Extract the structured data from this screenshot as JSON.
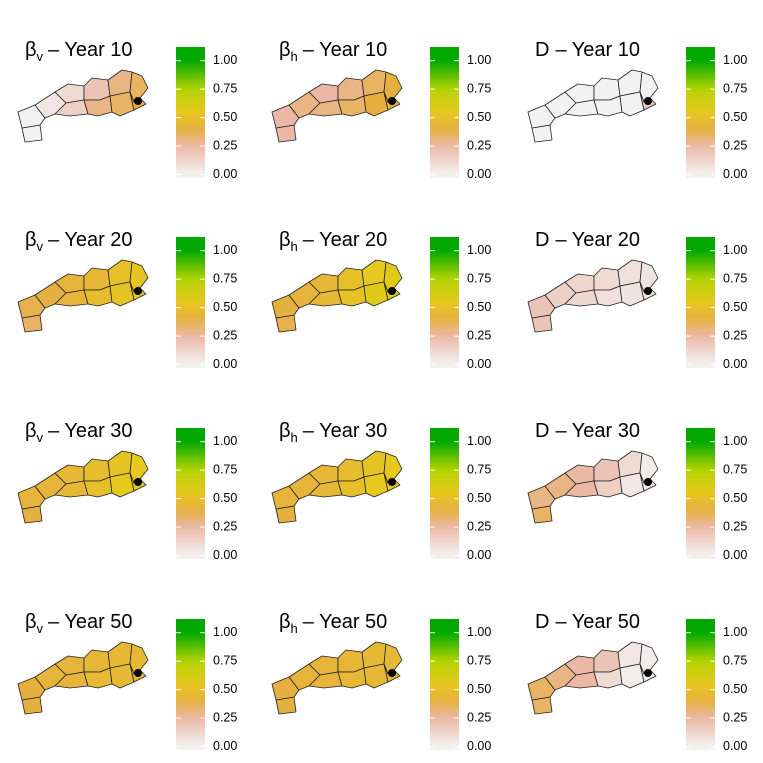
{
  "panels": [
    {
      "title": {
        "symbol": "β",
        "subscript": "v",
        "text": "– Year  10"
      },
      "values": [
        0.0,
        0.0,
        0.05,
        0.1,
        0.15,
        0.2,
        0.3,
        0.3,
        0.35,
        0.35,
        0.4
      ]
    },
    {
      "title": {
        "symbol": "β",
        "subscript": "h",
        "text": "– Year  10"
      },
      "values": [
        0.25,
        0.25,
        0.3,
        0.25,
        0.3,
        0.3,
        0.35,
        0.35,
        0.4,
        0.4,
        0.4
      ]
    },
    {
      "title": {
        "symbol": "D",
        "text": "– Year  10"
      },
      "values": [
        0.0,
        0.0,
        0.0,
        0.0,
        0.0,
        0.0,
        0.0,
        0.0,
        0.0,
        0.0,
        0.2
      ]
    },
    {
      "title": {
        "symbol": "β",
        "subscript": "v",
        "text": "– Year  20"
      },
      "values": [
        0.35,
        0.38,
        0.4,
        0.42,
        0.42,
        0.45,
        0.48,
        0.5,
        0.52,
        0.52,
        0.55
      ]
    },
    {
      "title": {
        "symbol": "β",
        "subscript": "h",
        "text": "– Year  20"
      },
      "values": [
        0.38,
        0.4,
        0.42,
        0.45,
        0.45,
        0.5,
        0.52,
        0.55,
        0.58,
        0.58,
        0.6
      ]
    },
    {
      "title": {
        "symbol": "D",
        "text": "– Year  20"
      },
      "values": [
        0.2,
        0.2,
        0.15,
        0.12,
        0.12,
        0.1,
        0.08,
        0.08,
        0.06,
        0.06,
        0.05
      ]
    },
    {
      "title": {
        "symbol": "β",
        "subscript": "v",
        "text": "– Year  30"
      },
      "values": [
        0.4,
        0.42,
        0.42,
        0.45,
        0.45,
        0.48,
        0.5,
        0.52,
        0.55,
        0.55,
        0.55
      ]
    },
    {
      "title": {
        "symbol": "β",
        "subscript": "h",
        "text": "– Year  30"
      },
      "values": [
        0.4,
        0.42,
        0.42,
        0.45,
        0.45,
        0.48,
        0.5,
        0.52,
        0.55,
        0.55,
        0.55
      ]
    },
    {
      "title": {
        "symbol": "D",
        "text": "– Year  30"
      },
      "values": [
        0.35,
        0.3,
        0.3,
        0.25,
        0.25,
        0.2,
        0.15,
        0.1,
        0.05,
        0.03,
        0.03
      ]
    },
    {
      "title": {
        "symbol": "β",
        "subscript": "v",
        "text": "– Year  50"
      },
      "values": [
        0.4,
        0.4,
        0.42,
        0.42,
        0.42,
        0.44,
        0.45,
        0.45,
        0.45,
        0.45,
        0.45
      ]
    },
    {
      "title": {
        "symbol": "β",
        "subscript": "h",
        "text": "– Year  50"
      },
      "values": [
        0.4,
        0.4,
        0.42,
        0.42,
        0.42,
        0.44,
        0.45,
        0.45,
        0.45,
        0.45,
        0.45
      ]
    },
    {
      "title": {
        "symbol": "D",
        "text": "– Year  50"
      },
      "values": [
        0.35,
        0.35,
        0.3,
        0.25,
        0.25,
        0.2,
        0.1,
        0.05,
        0.02,
        0.02,
        0.02
      ]
    }
  ],
  "colorbar": {
    "lim": [
      -0.03,
      1.12
    ],
    "ticks": [
      {
        "value": 0,
        "label": "0.00"
      },
      {
        "value": 0.25,
        "label": "0.25"
      },
      {
        "value": 0.5,
        "label": "0.50"
      },
      {
        "value": 0.75,
        "label": "0.75"
      },
      {
        "value": 1,
        "label": "1.00"
      }
    ],
    "stops": [
      [
        0,
        "#f2f2f2"
      ],
      [
        0.25,
        "#ebb8a6"
      ],
      [
        0.4,
        "#e6b040"
      ],
      [
        0.55,
        "#e6c81e"
      ],
      [
        0.75,
        "#b4d400"
      ],
      [
        1,
        "#00a800"
      ]
    ]
  }
}
